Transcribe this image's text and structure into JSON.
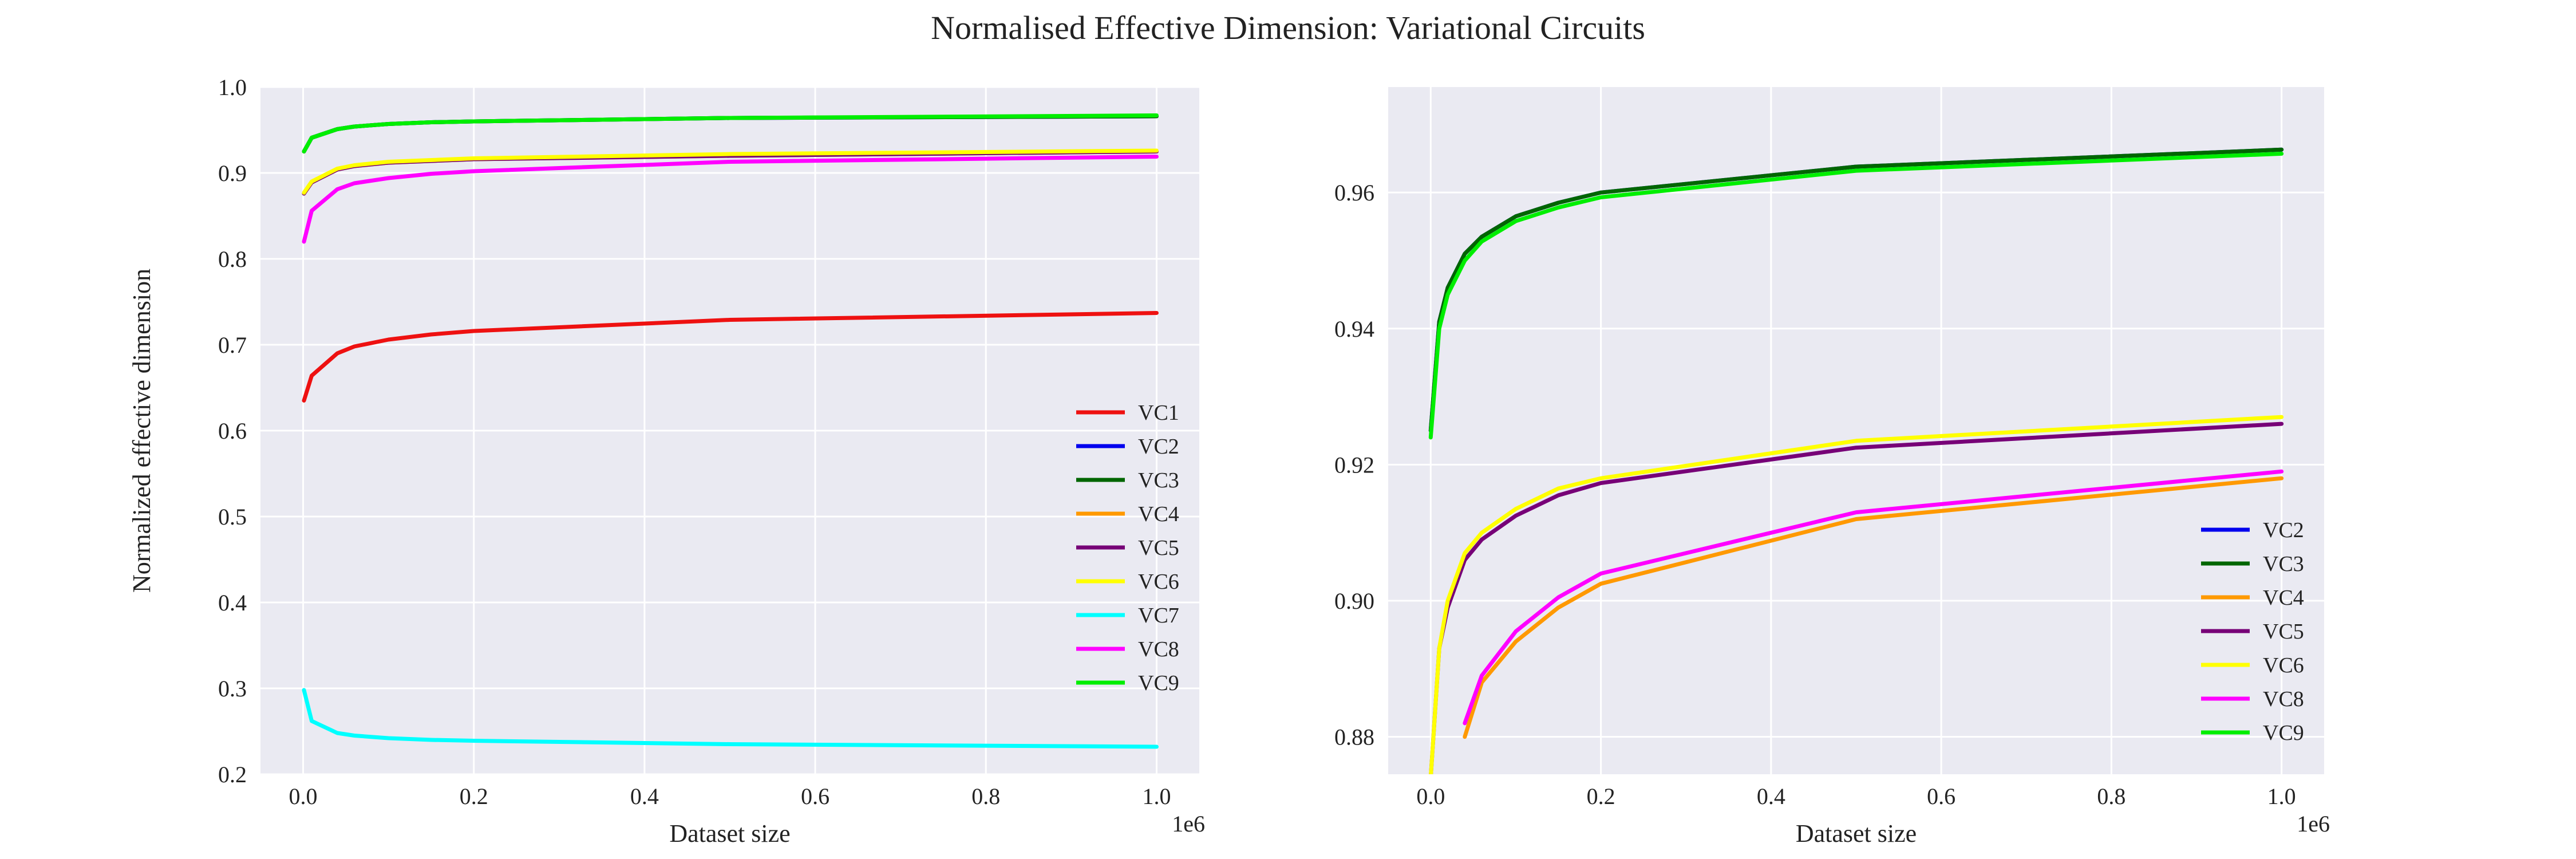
{
  "figure": {
    "title": "Normalised Effective Dimension: Variational Circuits",
    "background_color": "#ffffff",
    "axes_face_color": "#eaeaf2",
    "grid_color": "#ffffff"
  },
  "chart_data": [
    {
      "type": "line",
      "xlabel": "Dataset size",
      "ylabel": "Normalized effective dimension",
      "x_offset_label": "1e6",
      "xlim": [
        -0.05,
        1.05
      ],
      "ylim": [
        0.2,
        1.0
      ],
      "x_ticks": [
        0.0,
        0.2,
        0.4,
        0.6,
        0.8,
        1.0
      ],
      "x_tick_labels": [
        "0.0",
        "0.2",
        "0.4",
        "0.6",
        "0.8",
        "1.0"
      ],
      "y_ticks": [
        0.2,
        0.3,
        0.4,
        0.5,
        0.6,
        0.7,
        0.8,
        0.9,
        1.0
      ],
      "y_tick_labels": [
        "0.2",
        "0.3",
        "0.4",
        "0.5",
        "0.6",
        "0.7",
        "0.8",
        "0.9",
        "1.0"
      ],
      "grid": true,
      "legend_position": "lower-right",
      "x": [
        0.001,
        0.01,
        0.04,
        0.06,
        0.1,
        0.15,
        0.2,
        0.5,
        1.0
      ],
      "series": [
        {
          "name": "VC1",
          "color": "#ee1111",
          "values": [
            0.635,
            0.664,
            0.69,
            0.698,
            0.706,
            0.712,
            0.716,
            0.729,
            0.737
          ]
        },
        {
          "name": "VC2",
          "color": "#0000ee",
          "values": [
            0.925,
            0.941,
            0.951,
            0.954,
            0.957,
            0.959,
            0.96,
            0.964,
            0.966
          ]
        },
        {
          "name": "VC3",
          "color": "#006600",
          "values": [
            0.925,
            0.941,
            0.951,
            0.954,
            0.957,
            0.959,
            0.96,
            0.964,
            0.966
          ]
        },
        {
          "name": "VC4",
          "color": "#ff9900",
          "values": [
            0.876,
            0.889,
            0.904,
            0.908,
            0.912,
            0.914,
            0.916,
            0.92,
            0.925
          ]
        },
        {
          "name": "VC5",
          "color": "#770077",
          "values": [
            0.876,
            0.889,
            0.904,
            0.908,
            0.912,
            0.914,
            0.916,
            0.92,
            0.925
          ]
        },
        {
          "name": "VC6",
          "color": "#ffff00",
          "values": [
            0.877,
            0.89,
            0.905,
            0.909,
            0.913,
            0.915,
            0.917,
            0.922,
            0.926
          ]
        },
        {
          "name": "VC7",
          "color": "#00ffff",
          "values": [
            0.298,
            0.262,
            0.248,
            0.245,
            0.242,
            0.24,
            0.239,
            0.235,
            0.232
          ]
        },
        {
          "name": "VC8",
          "color": "#ff00ff",
          "values": [
            0.82,
            0.856,
            0.881,
            0.888,
            0.894,
            0.899,
            0.902,
            0.913,
            0.919
          ]
        },
        {
          "name": "VC9",
          "color": "#00ee00",
          "values": [
            0.925,
            0.941,
            0.951,
            0.954,
            0.957,
            0.959,
            0.96,
            0.964,
            0.967
          ]
        }
      ]
    },
    {
      "type": "line",
      "xlabel": "Dataset size",
      "ylabel": "",
      "x_offset_label": "1e6",
      "xlim": [
        -0.05,
        1.05
      ],
      "ylim": [
        0.8745,
        0.9755
      ],
      "x_ticks": [
        0.0,
        0.2,
        0.4,
        0.6,
        0.8,
        1.0
      ],
      "x_tick_labels": [
        "0.0",
        "0.2",
        "0.4",
        "0.6",
        "0.8",
        "1.0"
      ],
      "y_ticks": [
        0.88,
        0.9,
        0.92,
        0.94,
        0.96
      ],
      "y_tick_labels": [
        "0.88",
        "0.90",
        "0.92",
        "0.94",
        "0.96"
      ],
      "grid": true,
      "legend_position": "lower-right",
      "x": [
        0.0,
        0.01,
        0.02,
        0.04,
        0.06,
        0.1,
        0.15,
        0.2,
        0.5,
        1.0
      ],
      "series": [
        {
          "name": "VC2",
          "color": "#0000ee",
          "values": [
            0.925,
            0.941,
            0.946,
            0.951,
            0.9535,
            0.9565,
            0.9585,
            0.96,
            0.9638,
            0.9663
          ]
        },
        {
          "name": "VC3",
          "color": "#006600",
          "values": [
            0.925,
            0.941,
            0.946,
            0.951,
            0.9535,
            0.9565,
            0.9585,
            0.96,
            0.9638,
            0.9663
          ]
        },
        {
          "name": "VC4",
          "color": "#ff9900",
          "values": [
            null,
            null,
            null,
            0.88,
            0.888,
            0.894,
            0.899,
            0.9025,
            0.912,
            0.918
          ]
        },
        {
          "name": "VC5",
          "color": "#770077",
          "values": [
            0.874,
            0.893,
            0.899,
            0.906,
            0.909,
            0.9125,
            0.9155,
            0.9173,
            0.9225,
            0.926
          ]
        },
        {
          "name": "VC6",
          "color": "#ffff00",
          "values": [
            0.874,
            0.893,
            0.9,
            0.907,
            0.91,
            0.9135,
            0.9165,
            0.918,
            0.9235,
            0.927
          ]
        },
        {
          "name": "VC8",
          "color": "#ff00ff",
          "values": [
            null,
            null,
            null,
            0.882,
            0.889,
            0.8955,
            0.9005,
            0.904,
            0.913,
            0.919
          ]
        },
        {
          "name": "VC9",
          "color": "#00ee00",
          "values": [
            0.924,
            0.94,
            0.945,
            0.95,
            0.9528,
            0.9558,
            0.9578,
            0.9593,
            0.9632,
            0.9657
          ]
        }
      ]
    }
  ]
}
